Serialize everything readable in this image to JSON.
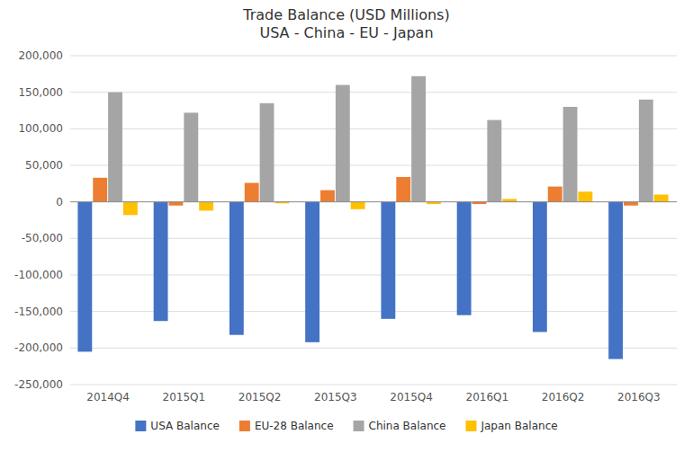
{
  "chart_data": {
    "type": "bar",
    "title": "Trade Balance (USD Millions)",
    "subtitle": "USA - China - EU - Japan",
    "categories": [
      "2014Q4",
      "2015Q1",
      "2015Q2",
      "2015Q3",
      "2015Q4",
      "2016Q1",
      "2016Q2",
      "2016Q3"
    ],
    "series": [
      {
        "name": "USA Balance",
        "color": "#4472C4",
        "values": [
          -205000,
          -163000,
          -182000,
          -192000,
          -160000,
          -155000,
          -178000,
          -215000
        ]
      },
      {
        "name": "EU-28 Balance",
        "color": "#ED7D31",
        "values": [
          33000,
          -5000,
          26000,
          16000,
          34000,
          -3000,
          21000,
          -5000
        ]
      },
      {
        "name": "China Balance",
        "color": "#A5A5A5",
        "values": [
          150000,
          122000,
          135000,
          160000,
          172000,
          112000,
          130000,
          140000
        ]
      },
      {
        "name": "Japan Balance",
        "color": "#FFC000",
        "values": [
          -18000,
          -12000,
          -2000,
          -10000,
          -3000,
          4000,
          14000,
          10000
        ]
      }
    ],
    "ylim": [
      -250000,
      200000
    ],
    "yticks": [
      {
        "value": -250000,
        "label": "-250,000"
      },
      {
        "value": -200000,
        "label": "-200,000"
      },
      {
        "value": -150000,
        "label": "-150,000"
      },
      {
        "value": -100000,
        "label": "-100,000"
      },
      {
        "value": -50000,
        "label": "-50,000"
      },
      0,
      {
        "value": 50000,
        "label": "50,000"
      },
      {
        "value": 100000,
        "label": "100,000"
      },
      {
        "value": 150000,
        "label": "150,000"
      },
      {
        "value": 200000,
        "label": "200,000"
      }
    ],
    "grid": true,
    "legend": "bottom"
  }
}
